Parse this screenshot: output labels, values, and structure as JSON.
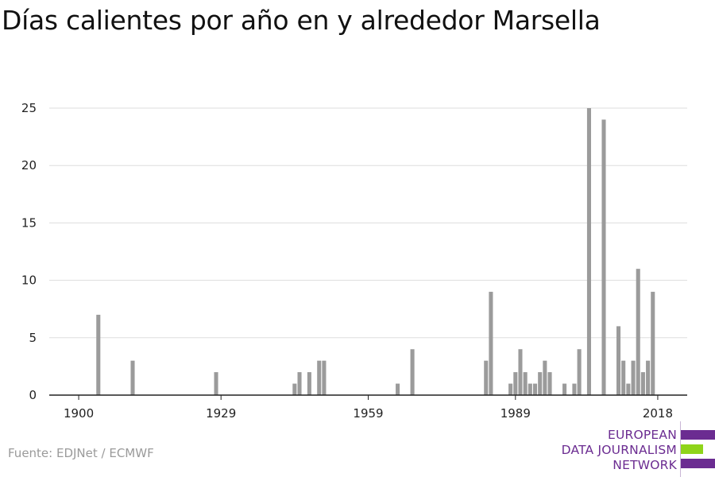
{
  "header": {
    "title": "Días calientes por año en y alrededor Marsella"
  },
  "footer": {
    "source": "Fuente: EDJNet / ECMWF"
  },
  "logo": {
    "lines": [
      "EUROPEAN",
      "DATA JOURNALISM",
      "NETWORK"
    ],
    "colors": {
      "purple": "#6b2c91",
      "green": "#8fd41a"
    }
  },
  "chart_data": {
    "type": "bar",
    "title": "Días calientes por año en y alrededor Marsella",
    "xlabel": "",
    "ylabel": "",
    "x_ticks": [
      "1900",
      "1929",
      "1959",
      "1989",
      "2018"
    ],
    "y_ticks": [
      "0",
      "5",
      "10",
      "15",
      "20",
      "25"
    ],
    "xlim": [
      1894,
      2024
    ],
    "ylim": [
      0,
      25
    ],
    "grid": true,
    "bar_color": "#9b9b9b",
    "x": [
      1904,
      1911,
      1928,
      1944,
      1945,
      1947,
      1949,
      1950,
      1965,
      1968,
      1983,
      1984,
      1988,
      1989,
      1990,
      1991,
      1992,
      1993,
      1994,
      1995,
      1996,
      1999,
      2001,
      2002,
      2004,
      2007,
      2010,
      2011,
      2012,
      2013,
      2014,
      2015,
      2016,
      2017,
      2018
    ],
    "values": [
      7,
      3,
      2,
      1,
      2,
      2,
      3,
      3,
      1,
      4,
      3,
      9,
      1,
      2,
      4,
      2,
      1,
      1,
      2,
      3,
      2,
      1,
      1,
      4,
      25,
      24,
      6,
      3,
      1,
      3,
      11,
      2,
      3,
      9,
      0
    ]
  }
}
